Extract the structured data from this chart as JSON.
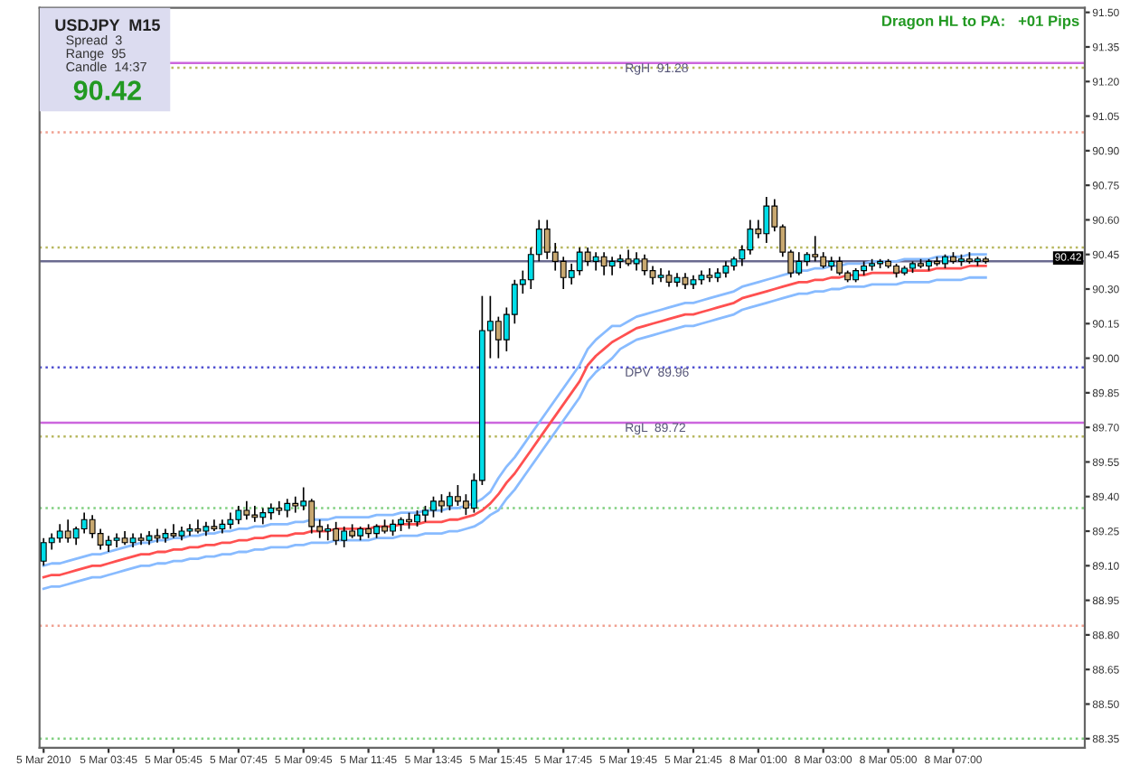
{
  "chart_data": {
    "type": "candlestick",
    "categories": [
      "5 Mar 2010",
      null,
      null,
      null,
      null,
      null,
      null,
      null,
      "5 Mar 03:45",
      null,
      null,
      null,
      null,
      null,
      null,
      null,
      "5 Mar 05:45",
      null,
      null,
      null,
      null,
      null,
      null,
      null,
      "5 Mar 07:45",
      null,
      null,
      null,
      null,
      null,
      null,
      null,
      "5 Mar 09:45",
      null,
      null,
      null,
      null,
      null,
      null,
      null,
      "5 Mar 11:45",
      null,
      null,
      null,
      null,
      null,
      null,
      null,
      "5 Mar 13:45",
      null,
      null,
      null,
      null,
      null,
      null,
      null,
      "5 Mar 15:45",
      null,
      null,
      null,
      null,
      null,
      null,
      null,
      "5 Mar 17:45",
      null,
      null,
      null,
      null,
      null,
      null,
      null,
      "5 Mar 19:45",
      null,
      null,
      null,
      null,
      null,
      null,
      null,
      "5 Mar 21:45",
      null,
      null,
      null,
      null,
      null,
      null,
      null,
      "8 Mar 01:00",
      null,
      null,
      null,
      null,
      null,
      null,
      null,
      "8 Mar 03:00",
      null,
      null,
      null,
      null,
      null,
      null,
      null,
      "8 Mar 05:00",
      null,
      null,
      null,
      null,
      null,
      null,
      null,
      "8 Mar 07:00",
      null,
      null,
      null,
      null
    ],
    "ohlc": [
      [
        89.12,
        89.22,
        89.1,
        89.2
      ],
      [
        89.2,
        89.24,
        89.17,
        89.22
      ],
      [
        89.22,
        89.28,
        89.2,
        89.25
      ],
      [
        89.25,
        89.3,
        89.2,
        89.22
      ],
      [
        89.22,
        89.27,
        89.19,
        89.26
      ],
      [
        89.26,
        89.33,
        89.24,
        89.3
      ],
      [
        89.3,
        89.32,
        89.22,
        89.24
      ],
      [
        89.24,
        89.26,
        89.17,
        89.19
      ],
      [
        89.19,
        89.23,
        89.16,
        89.21
      ],
      [
        89.21,
        89.24,
        89.18,
        89.22
      ],
      [
        89.22,
        89.25,
        89.19,
        89.2
      ],
      [
        89.2,
        89.24,
        89.18,
        89.22
      ],
      [
        89.22,
        89.24,
        89.19,
        89.21
      ],
      [
        89.21,
        89.25,
        89.19,
        89.23
      ],
      [
        89.23,
        89.26,
        89.2,
        89.22
      ],
      [
        89.22,
        89.26,
        89.2,
        89.24
      ],
      [
        89.24,
        89.28,
        89.22,
        89.23
      ],
      [
        89.23,
        89.27,
        89.21,
        89.25
      ],
      [
        89.25,
        89.28,
        89.23,
        89.26
      ],
      [
        89.26,
        89.3,
        89.24,
        89.25
      ],
      [
        89.25,
        89.29,
        89.23,
        89.27
      ],
      [
        89.27,
        89.3,
        89.25,
        89.26
      ],
      [
        89.26,
        89.3,
        89.24,
        89.28
      ],
      [
        89.28,
        89.33,
        89.26,
        89.3
      ],
      [
        89.3,
        89.36,
        89.28,
        89.34
      ],
      [
        89.34,
        89.38,
        89.3,
        89.32
      ],
      [
        89.32,
        89.36,
        89.29,
        89.31
      ],
      [
        89.31,
        89.35,
        89.28,
        89.33
      ],
      [
        89.33,
        89.37,
        89.3,
        89.35
      ],
      [
        89.35,
        89.38,
        89.32,
        89.34
      ],
      [
        89.34,
        89.39,
        89.31,
        89.37
      ],
      [
        89.37,
        89.4,
        89.33,
        89.36
      ],
      [
        89.36,
        89.44,
        89.34,
        89.38
      ],
      [
        89.38,
        89.39,
        89.24,
        89.27
      ],
      [
        89.27,
        89.3,
        89.22,
        89.25
      ],
      [
        89.25,
        89.28,
        89.21,
        89.26
      ],
      [
        89.26,
        89.29,
        89.19,
        89.21
      ],
      [
        89.21,
        89.27,
        89.18,
        89.25
      ],
      [
        89.25,
        89.28,
        89.22,
        89.23
      ],
      [
        89.23,
        89.27,
        89.21,
        89.26
      ],
      [
        89.26,
        89.28,
        89.22,
        89.24
      ],
      [
        89.24,
        89.28,
        89.22,
        89.27
      ],
      [
        89.27,
        89.3,
        89.24,
        89.25
      ],
      [
        89.25,
        89.3,
        89.23,
        89.28
      ],
      [
        89.28,
        89.31,
        89.25,
        89.3
      ],
      [
        89.3,
        89.33,
        89.26,
        89.29
      ],
      [
        89.29,
        89.34,
        89.27,
        89.32
      ],
      [
        89.32,
        89.36,
        89.29,
        89.34
      ],
      [
        89.34,
        89.4,
        89.31,
        89.38
      ],
      [
        89.38,
        89.41,
        89.33,
        89.36
      ],
      [
        89.36,
        89.42,
        89.34,
        89.4
      ],
      [
        89.4,
        89.45,
        89.36,
        89.38
      ],
      [
        89.38,
        89.41,
        89.32,
        89.35
      ],
      [
        89.35,
        89.5,
        89.33,
        89.47
      ],
      [
        89.47,
        90.27,
        89.45,
        90.12
      ],
      [
        90.12,
        90.27,
        90.0,
        90.16
      ],
      [
        90.16,
        90.18,
        90.0,
        90.08
      ],
      [
        90.08,
        90.22,
        90.03,
        90.19
      ],
      [
        90.19,
        90.34,
        90.15,
        90.32
      ],
      [
        90.32,
        90.38,
        90.28,
        90.34
      ],
      [
        90.34,
        90.48,
        90.3,
        90.45
      ],
      [
        90.45,
        90.6,
        90.42,
        90.56
      ],
      [
        90.56,
        90.6,
        90.43,
        90.46
      ],
      [
        90.46,
        90.5,
        90.38,
        90.42
      ],
      [
        90.42,
        90.44,
        90.3,
        90.35
      ],
      [
        90.35,
        90.41,
        90.32,
        90.38
      ],
      [
        90.38,
        90.48,
        90.36,
        90.46
      ],
      [
        90.46,
        90.48,
        90.4,
        90.42
      ],
      [
        90.42,
        90.46,
        90.38,
        90.44
      ],
      [
        90.44,
        90.46,
        90.36,
        90.4
      ],
      [
        90.4,
        90.44,
        90.36,
        90.42
      ],
      [
        90.42,
        90.45,
        90.39,
        90.43
      ],
      [
        90.43,
        90.47,
        90.4,
        90.41
      ],
      [
        90.41,
        90.46,
        90.38,
        90.43
      ],
      [
        90.43,
        90.45,
        90.36,
        90.38
      ],
      [
        90.38,
        90.4,
        90.32,
        90.35
      ],
      [
        90.35,
        90.39,
        90.33,
        90.36
      ],
      [
        90.36,
        90.38,
        90.31,
        90.33
      ],
      [
        90.33,
        90.37,
        90.31,
        90.35
      ],
      [
        90.35,
        90.37,
        90.3,
        90.32
      ],
      [
        90.32,
        90.36,
        90.3,
        90.34
      ],
      [
        90.34,
        90.38,
        90.32,
        90.36
      ],
      [
        90.36,
        90.39,
        90.33,
        90.35
      ],
      [
        90.35,
        90.39,
        90.33,
        90.37
      ],
      [
        90.37,
        90.42,
        90.35,
        90.4
      ],
      [
        90.4,
        90.44,
        90.38,
        90.43
      ],
      [
        90.43,
        90.49,
        90.4,
        90.47
      ],
      [
        90.47,
        90.6,
        90.45,
        90.56
      ],
      [
        90.56,
        90.6,
        90.52,
        90.54
      ],
      [
        90.54,
        90.7,
        90.5,
        90.66
      ],
      [
        90.66,
        90.69,
        90.55,
        90.57
      ],
      [
        90.57,
        90.58,
        90.44,
        90.46
      ],
      [
        90.46,
        90.47,
        90.35,
        90.37
      ],
      [
        90.37,
        90.46,
        90.36,
        90.42
      ],
      [
        90.42,
        90.46,
        90.4,
        90.45
      ],
      [
        90.45,
        90.53,
        90.42,
        90.44
      ],
      [
        90.44,
        90.46,
        90.39,
        90.4
      ],
      [
        90.4,
        90.44,
        90.38,
        90.42
      ],
      [
        90.42,
        90.44,
        90.36,
        90.37
      ],
      [
        90.37,
        90.38,
        90.33,
        90.34
      ],
      [
        90.34,
        90.39,
        90.33,
        90.38
      ],
      [
        90.38,
        90.42,
        90.36,
        90.4
      ],
      [
        90.4,
        90.43,
        90.38,
        90.41
      ],
      [
        90.41,
        90.43,
        90.39,
        90.42
      ],
      [
        90.42,
        90.43,
        90.39,
        90.4
      ],
      [
        90.4,
        90.41,
        90.35,
        90.37
      ],
      [
        90.37,
        90.4,
        90.36,
        90.39
      ],
      [
        90.39,
        90.42,
        90.37,
        90.41
      ],
      [
        90.41,
        90.43,
        90.39,
        90.4
      ],
      [
        90.4,
        90.43,
        90.38,
        90.42
      ],
      [
        90.42,
        90.44,
        90.4,
        90.41
      ],
      [
        90.41,
        90.45,
        90.39,
        90.44
      ],
      [
        90.44,
        90.46,
        90.41,
        90.42
      ],
      [
        90.42,
        90.45,
        90.4,
        90.43
      ],
      [
        90.43,
        90.46,
        90.41,
        90.42
      ],
      [
        90.42,
        90.44,
        90.4,
        90.43
      ],
      [
        90.43,
        90.44,
        90.41,
        90.42
      ]
    ],
    "series": [
      {
        "type": "line",
        "color": "#88bbff",
        "values": [
          89.1,
          89.11,
          89.11,
          89.12,
          89.13,
          89.14,
          89.15,
          89.15,
          89.16,
          89.17,
          89.18,
          89.19,
          89.2,
          89.2,
          89.21,
          89.21,
          89.22,
          89.22,
          89.23,
          89.23,
          89.24,
          89.24,
          89.25,
          89.25,
          89.26,
          89.26,
          89.27,
          89.27,
          89.28,
          89.28,
          89.28,
          89.29,
          89.29,
          89.3,
          89.3,
          89.3,
          89.31,
          89.31,
          89.31,
          89.31,
          89.31,
          89.32,
          89.32,
          89.32,
          89.33,
          89.33,
          89.33,
          89.34,
          89.34,
          89.34,
          89.35,
          89.35,
          89.36,
          89.37,
          89.39,
          89.42,
          89.48,
          89.53,
          89.57,
          89.62,
          89.67,
          89.72,
          89.77,
          89.82,
          89.87,
          89.92,
          89.97,
          90.04,
          90.08,
          90.11,
          90.14,
          90.14,
          90.16,
          90.18,
          90.19,
          90.2,
          90.21,
          90.22,
          90.23,
          90.24,
          90.24,
          90.25,
          90.26,
          90.27,
          90.28,
          90.29,
          90.31,
          90.32,
          90.33,
          90.34,
          90.35,
          90.36,
          90.37,
          90.38,
          90.38,
          90.39,
          90.39,
          90.4,
          90.4,
          90.41,
          90.41,
          90.41,
          90.42,
          90.42,
          90.42,
          90.42,
          90.43,
          90.43,
          90.43,
          90.43,
          90.44,
          90.44,
          90.44,
          90.44,
          90.45,
          90.45,
          90.45
        ]
      },
      {
        "type": "line",
        "color": "#ff5050",
        "values": [
          89.05,
          89.06,
          89.06,
          89.07,
          89.08,
          89.09,
          89.1,
          89.1,
          89.11,
          89.12,
          89.13,
          89.14,
          89.15,
          89.15,
          89.16,
          89.16,
          89.17,
          89.17,
          89.18,
          89.18,
          89.19,
          89.19,
          89.2,
          89.2,
          89.21,
          89.21,
          89.22,
          89.22,
          89.23,
          89.23,
          89.23,
          89.24,
          89.24,
          89.25,
          89.25,
          89.25,
          89.26,
          89.26,
          89.26,
          89.26,
          89.26,
          89.27,
          89.27,
          89.27,
          89.28,
          89.28,
          89.28,
          89.29,
          89.29,
          89.29,
          89.3,
          89.3,
          89.31,
          89.32,
          89.34,
          89.37,
          89.41,
          89.46,
          89.5,
          89.55,
          89.6,
          89.65,
          89.7,
          89.75,
          89.8,
          89.85,
          89.9,
          89.97,
          90.01,
          90.04,
          90.07,
          90.09,
          90.11,
          90.13,
          90.14,
          90.15,
          90.16,
          90.17,
          90.18,
          90.19,
          90.19,
          90.2,
          90.21,
          90.22,
          90.23,
          90.24,
          90.26,
          90.27,
          90.28,
          90.29,
          90.3,
          90.31,
          90.32,
          90.33,
          90.33,
          90.34,
          90.34,
          90.35,
          90.35,
          90.36,
          90.36,
          90.36,
          90.37,
          90.37,
          90.37,
          90.37,
          90.38,
          90.38,
          90.38,
          90.38,
          90.39,
          90.39,
          90.39,
          90.39,
          90.4,
          90.4,
          90.4
        ]
      },
      {
        "type": "line",
        "color": "#88bbff",
        "values": [
          89.0,
          89.01,
          89.01,
          89.02,
          89.03,
          89.04,
          89.05,
          89.05,
          89.06,
          89.07,
          89.08,
          89.09,
          89.1,
          89.1,
          89.11,
          89.11,
          89.12,
          89.12,
          89.13,
          89.13,
          89.14,
          89.14,
          89.15,
          89.15,
          89.16,
          89.16,
          89.17,
          89.17,
          89.18,
          89.18,
          89.18,
          89.19,
          89.19,
          89.2,
          89.2,
          89.2,
          89.21,
          89.21,
          89.21,
          89.21,
          89.21,
          89.22,
          89.22,
          89.22,
          89.23,
          89.23,
          89.23,
          89.24,
          89.24,
          89.24,
          89.25,
          89.25,
          89.26,
          89.27,
          89.29,
          89.32,
          89.34,
          89.39,
          89.43,
          89.48,
          89.53,
          89.58,
          89.63,
          89.68,
          89.73,
          89.78,
          89.83,
          89.9,
          89.94,
          89.97,
          90.0,
          90.04,
          90.06,
          90.08,
          90.09,
          90.1,
          90.11,
          90.12,
          90.13,
          90.14,
          90.14,
          90.15,
          90.16,
          90.17,
          90.18,
          90.19,
          90.21,
          90.22,
          90.23,
          90.24,
          90.25,
          90.26,
          90.27,
          90.28,
          90.28,
          90.29,
          90.29,
          90.3,
          90.3,
          90.31,
          90.31,
          90.31,
          90.32,
          90.32,
          90.32,
          90.32,
          90.33,
          90.33,
          90.33,
          90.33,
          90.34,
          90.34,
          90.34,
          90.34,
          90.35,
          90.35,
          90.35
        ]
      }
    ],
    "ylim": [
      88.31,
      91.52
    ],
    "yticks": [
      {
        "value": 88.35,
        "label": "88.35"
      },
      {
        "value": 88.5,
        "label": "88.50"
      },
      {
        "value": 88.65,
        "label": "88.65"
      },
      {
        "value": 88.8,
        "label": "88.80"
      },
      {
        "value": 88.95,
        "label": "88.95"
      },
      {
        "value": 89.1,
        "label": "89.10"
      },
      {
        "value": 89.25,
        "label": "89.25"
      },
      {
        "value": 89.4,
        "label": "89.40"
      },
      {
        "value": 89.55,
        "label": "89.55"
      },
      {
        "value": 89.7,
        "label": "89.70"
      },
      {
        "value": 89.85,
        "label": "89.85"
      },
      {
        "value": 90.0,
        "label": "90.00"
      },
      {
        "value": 90.15,
        "label": "90.15"
      },
      {
        "value": 90.3,
        "label": "90.30"
      },
      {
        "value": 90.45,
        "label": "90.45"
      },
      {
        "value": 90.6,
        "label": "90.60"
      },
      {
        "value": 90.75,
        "label": "90.75"
      },
      {
        "value": 90.9,
        "label": "90.90"
      },
      {
        "value": 91.05,
        "label": "91.05"
      },
      {
        "value": 91.2,
        "label": "91.20"
      },
      {
        "value": 91.35,
        "label": "91.35"
      },
      {
        "value": 91.5,
        "label": "91.50"
      }
    ],
    "ref_lines": [
      {
        "axis": "y",
        "value": 91.28,
        "label": "RgH  91.28",
        "color": "#cc66dd",
        "line_style": "solid"
      },
      {
        "axis": "y",
        "value": 91.26,
        "color": "#b8b860",
        "line_style": "dotted"
      },
      {
        "axis": "y",
        "value": 90.98,
        "color": "#f0a090",
        "line_style": "dotted"
      },
      {
        "axis": "y",
        "value": 90.48,
        "color": "#b8b860",
        "line_style": "dotted"
      },
      {
        "axis": "y",
        "value": 90.42,
        "color": "#6a6a90",
        "line_style": "solid"
      },
      {
        "axis": "y",
        "value": 89.96,
        "label": "DPV  89.96",
        "color": "#5050d0",
        "line_style": "dotted"
      },
      {
        "axis": "y",
        "value": 89.72,
        "label": "RgL  89.72",
        "color": "#cc66dd",
        "line_style": "solid"
      },
      {
        "axis": "y",
        "value": 89.66,
        "color": "#b8b860",
        "line_style": "dotted"
      },
      {
        "axis": "y",
        "value": 89.35,
        "color": "#80d080",
        "line_style": "dotted"
      },
      {
        "axis": "y",
        "value": 88.84,
        "color": "#f0a090",
        "line_style": "dotted"
      },
      {
        "axis": "y",
        "value": 88.35,
        "color": "#80d080",
        "line_style": "dotted"
      }
    ],
    "annotations": [
      "USDJPY  M15",
      "Spread  3",
      "Range  95",
      "Candle  14:37",
      "90.42",
      "Dragon HL to PA:   +01 Pips",
      "90.42"
    ]
  }
}
